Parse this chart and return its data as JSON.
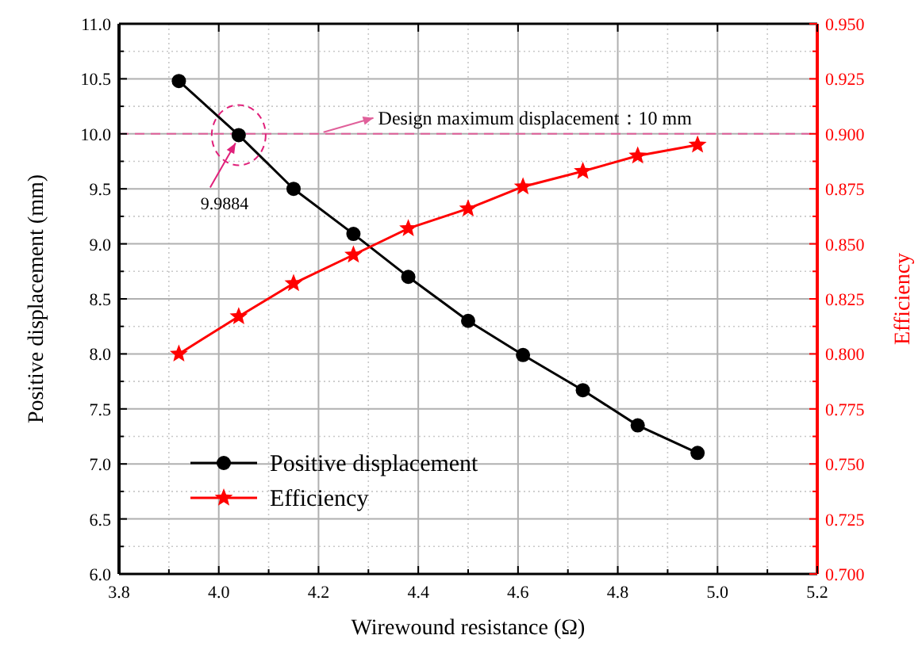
{
  "chart_data": {
    "type": "line",
    "xlabel": "Wirewound resistance (Ω)",
    "ylabel": "Positive displacement (mm)",
    "y2label": "Efficiency",
    "x": [
      3.92,
      4.04,
      4.15,
      4.27,
      4.38,
      4.5,
      4.61,
      4.73,
      4.84,
      4.96
    ],
    "series": [
      {
        "name": "Positive displacement",
        "color": "#000000",
        "marker": "circle",
        "values": [
          10.48,
          9.9884,
          9.5,
          9.09,
          8.7,
          8.3,
          7.99,
          7.67,
          7.35,
          7.1
        ]
      },
      {
        "name": "Efficiency",
        "color": "#ff0000",
        "marker": "star",
        "axis": "y2",
        "values": [
          0.8,
          0.817,
          0.832,
          0.845,
          0.857,
          0.866,
          0.876,
          0.883,
          0.89,
          0.895
        ]
      }
    ],
    "xlim": [
      3.8,
      5.2
    ],
    "xticks": [
      {
        "value": 3.8,
        "label": "3.8"
      },
      {
        "value": 4.0,
        "label": "4.0"
      },
      {
        "value": 4.2,
        "label": "4.2"
      },
      {
        "value": 4.4,
        "label": "4.4"
      },
      {
        "value": 4.6,
        "label": "4.6"
      },
      {
        "value": 4.8,
        "label": "4.8"
      },
      {
        "value": 5.0,
        "label": "5.0"
      },
      {
        "value": 5.2,
        "label": "5.2"
      }
    ],
    "ylim": [
      6.0,
      11.0
    ],
    "yticks": [
      {
        "value": 6.0,
        "label": "6.0"
      },
      {
        "value": 6.5,
        "label": "6.5"
      },
      {
        "value": 7.0,
        "label": "7.0"
      },
      {
        "value": 7.5,
        "label": "7.5"
      },
      {
        "value": 8.0,
        "label": "8.0"
      },
      {
        "value": 8.5,
        "label": "8.5"
      },
      {
        "value": 9.0,
        "label": "9.0"
      },
      {
        "value": 9.5,
        "label": "9.5"
      },
      {
        "value": 10.0,
        "label": "10.0"
      },
      {
        "value": 10.5,
        "label": "10.5"
      },
      {
        "value": 11.0,
        "label": "11.0"
      }
    ],
    "y2lim": [
      0.7,
      0.95
    ],
    "y2ticks": [
      {
        "value": 0.7,
        "label": "0.700"
      },
      {
        "value": 0.725,
        "label": "0.725"
      },
      {
        "value": 0.75,
        "label": "0.750"
      },
      {
        "value": 0.775,
        "label": "0.775"
      },
      {
        "value": 0.8,
        "label": "0.800"
      },
      {
        "value": 0.825,
        "label": "0.825"
      },
      {
        "value": 0.85,
        "label": "0.850"
      },
      {
        "value": 0.875,
        "label": "0.875"
      },
      {
        "value": 0.9,
        "label": "0.900"
      },
      {
        "value": 0.925,
        "label": "0.925"
      },
      {
        "value": 0.95,
        "label": "0.950"
      }
    ],
    "ref_lines": [
      {
        "axis": "y",
        "value": 10.0,
        "label": "Design maximum displacement：10 mm",
        "color": "#e0609a",
        "line_style": "dashed"
      }
    ],
    "annotations": [
      {
        "text": "9.9884",
        "x": 4.04,
        "y": 9.9884
      }
    ],
    "grid": true,
    "legend": "bottom left",
    "line_style": "solid"
  }
}
